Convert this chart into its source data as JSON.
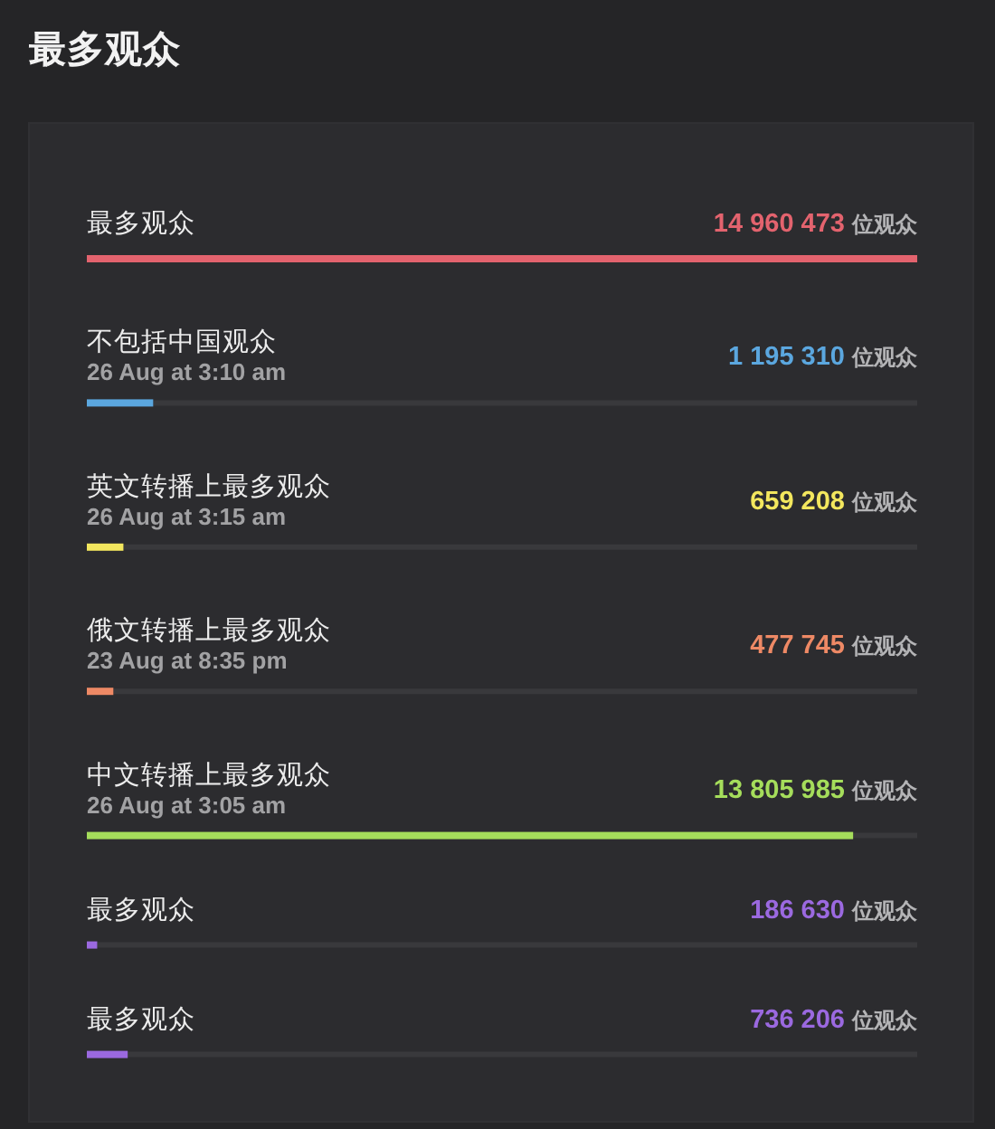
{
  "chart_data": {
    "type": "bar",
    "orientation": "horizontal",
    "title": "最多观众",
    "categories": [
      "最多观众",
      "不包括中国观众\n26 Aug at 3:10 am",
      "英文转播上最多观众\n26 Aug at 3:15 am",
      "俄文转播上最多观众\n23 Aug at 8:35 pm",
      "中文转播上最多观众\n26 Aug at 3:05 am",
      "最多观众",
      "最多观众"
    ],
    "values": [
      14960473,
      1195310,
      659208,
      477745,
      13805985,
      186630,
      736206
    ],
    "colors": [
      "#e3636e",
      "#5ba7df",
      "#f3e75e",
      "#ee8965",
      "#a5dd5b",
      "#9b69e0",
      "#9b69e0"
    ],
    "xlim": [
      0,
      14960473
    ],
    "value_labels": [
      "14 960 473 位观众",
      "1 195 310 位观众",
      "659 208 位观众",
      "477 745 位观众",
      "13 805 985 位观众",
      "186 630 位观众",
      "736 206 位观众"
    ]
  }
}
